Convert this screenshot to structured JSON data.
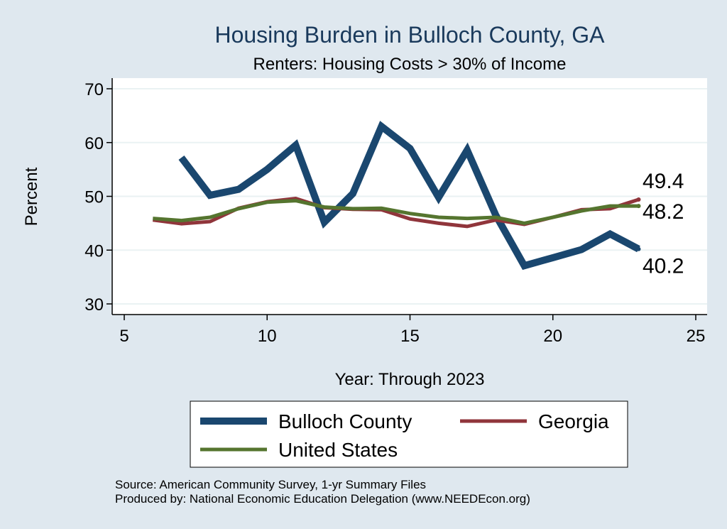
{
  "chart_data": {
    "type": "line",
    "title": "Housing Burden in Bulloch County, GA",
    "subtitle": "Renters: Housing Costs > 30% of Income",
    "xlabel": "Year: Through 2023",
    "ylabel": "Percent",
    "xlim": [
      5,
      25
    ],
    "ylim": [
      28,
      71
    ],
    "xticks": [
      5,
      10,
      15,
      20,
      25
    ],
    "yticks": [
      30,
      40,
      50,
      60,
      70
    ],
    "grid": true,
    "series": [
      {
        "name": "Bulloch County",
        "color": "#1a476f",
        "width": 10,
        "x": [
          7,
          8,
          9,
          10,
          11,
          12,
          13,
          14,
          15,
          16,
          17,
          18,
          19,
          20,
          21,
          22,
          23
        ],
        "values": [
          57.2,
          50.2,
          51.3,
          55.0,
          59.5,
          45.2,
          50.5,
          63.0,
          58.9,
          49.8,
          58.6,
          46.5,
          37.1,
          38.6,
          40.1,
          43.0,
          40.2
        ],
        "end_label": "40.2"
      },
      {
        "name": "Georgia",
        "color": "#90353b",
        "width": 5,
        "x": [
          6,
          7,
          8,
          9,
          10,
          11,
          12,
          13,
          14,
          15,
          16,
          17,
          18,
          19,
          20,
          21,
          22,
          23
        ],
        "values": [
          45.6,
          44.9,
          45.3,
          47.8,
          49.0,
          49.6,
          47.9,
          47.6,
          47.5,
          45.8,
          45.0,
          44.4,
          45.6,
          44.8,
          46.1,
          47.5,
          47.7,
          49.4
        ],
        "end_label": "49.4"
      },
      {
        "name": "United States",
        "color": "#55752f",
        "width": 5,
        "x": [
          6,
          7,
          8,
          9,
          10,
          11,
          12,
          13,
          14,
          15,
          16,
          17,
          18,
          19,
          20,
          21,
          22,
          23
        ],
        "values": [
          45.9,
          45.5,
          46.1,
          47.7,
          48.9,
          49.2,
          48.0,
          47.7,
          47.8,
          46.8,
          46.1,
          45.9,
          46.1,
          45.0,
          46.1,
          47.3,
          48.2,
          48.2
        ],
        "end_label": "48.2"
      }
    ],
    "legend_position": "bottom"
  },
  "notes": [
    "Source: American Community Survey, 1-yr Summary Files",
    "Produced by: National Economic Education Delegation (www.NEEDEcon.org)"
  ]
}
